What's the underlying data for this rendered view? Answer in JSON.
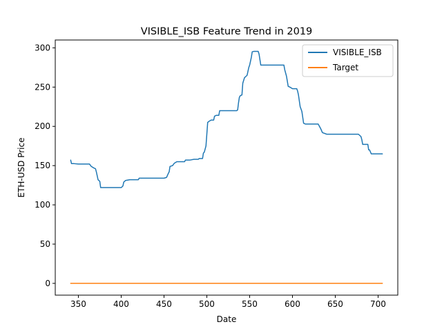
{
  "chart_data": {
    "type": "line",
    "title": "VISIBLE_ISB Feature Trend in 2019",
    "xlabel": "Date",
    "ylabel": "ETH-USD Price",
    "xlim": [
      323,
      723
    ],
    "ylim": [
      -15,
      310
    ],
    "xticks": [
      350,
      400,
      450,
      500,
      550,
      600,
      650,
      700
    ],
    "yticks": [
      0,
      50,
      100,
      150,
      200,
      250,
      300
    ],
    "grid": false,
    "legend_position": "top-right",
    "series": [
      {
        "name": "VISIBLE_ISB",
        "color": "#1f77b4",
        "x": [
          341,
          342,
          345,
          350,
          355,
          360,
          363,
          365,
          368,
          370,
          371,
          373,
          375,
          376,
          380,
          385,
          390,
          395,
          400,
          401,
          402,
          403,
          405,
          410,
          415,
          420,
          421,
          425,
          430,
          435,
          440,
          445,
          450,
          453,
          455,
          456,
          457,
          460,
          462,
          465,
          470,
          474,
          475,
          480,
          485,
          490,
          491,
          495,
          496,
          497,
          499,
          500,
          501,
          502,
          505,
          508,
          509,
          511,
          514,
          515,
          518,
          520,
          525,
          530,
          535,
          536,
          537,
          538,
          539,
          541,
          542,
          544,
          546,
          547,
          549,
          550,
          552,
          553,
          555,
          558,
          560,
          561,
          563,
          565,
          570,
          575,
          580,
          585,
          590,
          591,
          593,
          595,
          597,
          600,
          605,
          606,
          607,
          609,
          610,
          611,
          613,
          615,
          620,
          625,
          630,
          632,
          633,
          635,
          640,
          645,
          650,
          655,
          660,
          665,
          670,
          675,
          677,
          678,
          680,
          681,
          682,
          684,
          686,
          688,
          689,
          690,
          692,
          695,
          700,
          705
        ],
        "values": [
          157,
          152.5,
          152.5,
          152,
          152,
          152,
          152,
          149,
          147,
          146,
          142,
          132,
          130,
          122,
          122,
          122,
          122,
          122,
          122,
          123,
          124,
          129,
          131,
          132,
          132,
          132,
          134,
          134,
          134,
          134,
          134,
          134,
          134,
          135,
          140,
          142,
          149,
          150,
          153,
          155,
          155,
          155,
          157,
          157,
          158,
          158,
          159,
          159,
          166,
          167,
          175,
          190,
          205,
          206,
          208,
          208,
          213,
          214,
          214,
          220,
          220,
          220,
          220,
          220,
          220,
          221,
          230,
          237,
          239,
          240,
          255,
          262,
          264,
          265,
          275,
          278,
          288,
          295,
          295.5,
          295.5,
          295.5,
          292,
          278,
          278,
          278,
          278,
          278,
          278,
          278,
          272,
          264,
          251,
          250,
          248,
          248,
          245,
          240,
          225,
          222,
          219,
          204,
          203,
          203,
          203,
          203,
          199,
          197,
          192,
          190,
          190,
          190,
          190,
          190,
          190,
          190,
          190,
          190,
          189,
          187,
          183,
          177,
          177,
          177,
          177,
          170,
          170,
          165,
          165,
          165,
          165
        ]
      },
      {
        "name": "Target",
        "color": "#ff7f0e",
        "x": [
          341,
          705
        ],
        "values": [
          0,
          0
        ]
      }
    ]
  }
}
